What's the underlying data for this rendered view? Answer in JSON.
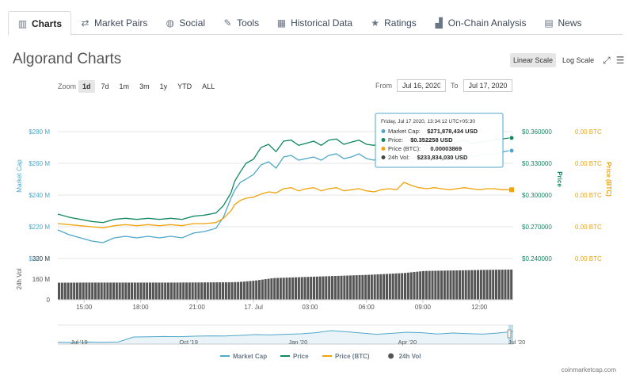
{
  "tabs": [
    {
      "label": "Charts",
      "icon": "chart-icon",
      "glyph": "▥",
      "active": true
    },
    {
      "label": "Market Pairs",
      "icon": "swap-icon",
      "glyph": "⇄",
      "active": false
    },
    {
      "label": "Social",
      "icon": "globe-icon",
      "glyph": "◍",
      "active": false
    },
    {
      "label": "Tools",
      "icon": "wrench-icon",
      "glyph": "✎",
      "active": false
    },
    {
      "label": "Historical Data",
      "icon": "calendar-icon",
      "glyph": "▦",
      "active": false
    },
    {
      "label": "Ratings",
      "icon": "star-icon",
      "glyph": "★",
      "active": false
    },
    {
      "label": "On-Chain Analysis",
      "icon": "bar-chart-icon",
      "glyph": "▟",
      "active": false
    },
    {
      "label": "News",
      "icon": "newspaper-icon",
      "glyph": "▤",
      "active": false
    }
  ],
  "title": "Algorand Charts",
  "scale": {
    "linear": "Linear Scale",
    "log": "Log Scale",
    "active": "linear"
  },
  "zoom": {
    "label": "Zoom",
    "options": [
      "1d",
      "7d",
      "1m",
      "3m",
      "1y",
      "YTD",
      "ALL"
    ],
    "active": "1d"
  },
  "range": {
    "from_label": "From",
    "from": "Jul 16, 2020",
    "to_label": "To",
    "to": "Jul 17, 2020"
  },
  "tooltip": {
    "header": "Friday, Jul 17 2020, 13:34:12 UTC+05:30",
    "rows": [
      {
        "label": "Market Cap:",
        "value": "$271,878,434 USD",
        "color": "#4fa7c9"
      },
      {
        "label": "Price:",
        "value": "$0.352258 USD",
        "color": "#11885f"
      },
      {
        "label": "Price (BTC):",
        "value": "0.00003869",
        "color": "#f0a30a"
      },
      {
        "label": "24h Vol:",
        "value": "$233,834,030 USD",
        "color": "#444444"
      }
    ]
  },
  "legend": [
    {
      "name": "Market Cap",
      "color": "#4fa7c9",
      "marker": "line"
    },
    {
      "name": "Price",
      "color": "#11885f",
      "marker": "line"
    },
    {
      "name": "Price (BTC)",
      "color": "#f0a30a",
      "marker": "line"
    },
    {
      "name": "24h Vol",
      "color": "#555555",
      "marker": "dot"
    }
  ],
  "watermark": "coinmarketcap.com",
  "chart_data": {
    "type": "line",
    "x_ticks": [
      "15:00",
      "18:00",
      "21:00",
      "17. Jul",
      "03:00",
      "06:00",
      "09:00",
      "12:00"
    ],
    "x_tick_hours": [
      15,
      18,
      21,
      24,
      27,
      30,
      33,
      36
    ],
    "x_range_hours": [
      13.6,
      37.8
    ],
    "axes": {
      "market_cap": {
        "label": "Market Cap",
        "ticks": [
          "$280 M",
          "$260 M",
          "$240 M",
          "$220 M",
          "$200 M"
        ],
        "tick_values": [
          280,
          260,
          240,
          220,
          200
        ],
        "ylim": [
          200,
          280
        ],
        "unit": "M USD",
        "color": "#4fa7c9"
      },
      "price": {
        "label": "Price",
        "ticks": [
          "$0.360000",
          "$0.330000",
          "$0.300000",
          "$0.270000",
          "$0.240000"
        ],
        "tick_values": [
          0.36,
          0.33,
          0.3,
          0.27,
          0.24
        ],
        "ylim": [
          0.24,
          0.36
        ],
        "color": "#11885f"
      },
      "price_btc": {
        "label": "Price (BTC)",
        "ticks": [
          "0.00 BTC",
          "0.00 BTC",
          "0.00 BTC",
          "0.00 BTC",
          "0.00 BTC"
        ],
        "color": "#f0a30a"
      },
      "volume": {
        "label": "24h Vol",
        "ticks": [
          "320 M",
          "160 M",
          "0"
        ],
        "tick_values": [
          320,
          160,
          0
        ],
        "ylim": [
          0,
          320
        ],
        "unit": "M USD",
        "color": "#555555"
      }
    },
    "series": [
      {
        "name": "Market Cap",
        "axis": "market_cap",
        "color": "#4fa7c9",
        "x": [
          13.6,
          14.2,
          14.8,
          15.4,
          16.0,
          16.6,
          17.2,
          17.8,
          18.4,
          19.0,
          19.6,
          20.2,
          20.8,
          21.4,
          22.0,
          22.4,
          22.8,
          23.0,
          23.3,
          23.6,
          24.0,
          24.4,
          24.8,
          25.2,
          25.6,
          26.0,
          26.4,
          26.8,
          27.2,
          27.6,
          28.0,
          28.4,
          28.8,
          29.2,
          29.6,
          30.0,
          30.4,
          30.8,
          31.2,
          31.6,
          32.0,
          32.4,
          32.8,
          33.2,
          33.6,
          34.0,
          34.4,
          34.8,
          35.2,
          35.6,
          36.0,
          36.4,
          36.8,
          37.2,
          37.6
        ],
        "values": [
          218,
          215,
          213,
          211,
          210,
          213,
          214,
          213,
          214,
          213,
          214,
          213,
          216,
          217,
          219,
          226,
          238,
          243,
          248,
          250,
          253,
          259,
          261,
          257,
          264,
          265,
          262,
          263,
          264,
          262,
          265,
          266,
          263,
          264,
          266,
          263,
          262,
          264,
          265,
          263,
          262,
          263,
          265,
          263,
          265,
          264,
          263,
          265,
          266,
          264,
          265,
          266,
          266,
          267,
          268
        ]
      },
      {
        "name": "Price",
        "axis": "price",
        "color": "#11885f",
        "x": [
          13.6,
          14.2,
          14.8,
          15.4,
          16.0,
          16.6,
          17.2,
          17.8,
          18.4,
          19.0,
          19.6,
          20.2,
          20.8,
          21.4,
          22.0,
          22.4,
          22.8,
          23.0,
          23.3,
          23.6,
          24.0,
          24.4,
          24.8,
          25.2,
          25.6,
          26.0,
          26.4,
          26.8,
          27.2,
          27.6,
          28.0,
          28.4,
          28.8,
          29.2,
          29.6,
          30.0,
          30.4,
          30.8,
          31.2,
          31.6,
          32.0,
          32.4,
          32.8,
          33.2,
          33.6,
          34.0,
          34.4,
          34.8,
          35.2,
          35.6,
          36.0,
          36.4,
          36.8,
          37.2,
          37.6
        ],
        "values": [
          0.282,
          0.279,
          0.277,
          0.275,
          0.274,
          0.277,
          0.278,
          0.277,
          0.278,
          0.277,
          0.278,
          0.277,
          0.28,
          0.281,
          0.283,
          0.29,
          0.302,
          0.313,
          0.322,
          0.33,
          0.334,
          0.345,
          0.348,
          0.341,
          0.351,
          0.352,
          0.347,
          0.349,
          0.351,
          0.347,
          0.352,
          0.353,
          0.348,
          0.35,
          0.352,
          0.348,
          0.347,
          0.35,
          0.351,
          0.348,
          0.372,
          0.351,
          0.349,
          0.347,
          0.35,
          0.349,
          0.347,
          0.35,
          0.352,
          0.349,
          0.35,
          0.351,
          0.352,
          0.353,
          0.354
        ]
      },
      {
        "name": "Price (BTC)",
        "axis": "price",
        "color": "#f0a30a",
        "x": [
          13.6,
          14.2,
          14.8,
          15.4,
          16.0,
          16.6,
          17.2,
          17.8,
          18.4,
          19.0,
          19.6,
          20.2,
          20.8,
          21.4,
          22.0,
          22.4,
          22.8,
          23.0,
          23.3,
          23.6,
          24.0,
          24.4,
          24.8,
          25.2,
          25.6,
          26.0,
          26.4,
          26.8,
          27.2,
          27.6,
          28.0,
          28.4,
          28.8,
          29.2,
          29.6,
          30.0,
          30.4,
          30.8,
          31.2,
          31.6,
          32.0,
          32.4,
          32.8,
          33.2,
          33.6,
          34.0,
          34.4,
          34.8,
          35.2,
          35.6,
          36.0,
          36.4,
          36.8,
          37.2,
          37.6
        ],
        "values": [
          0.273,
          0.272,
          0.271,
          0.27,
          0.269,
          0.271,
          0.272,
          0.271,
          0.272,
          0.271,
          0.272,
          0.271,
          0.273,
          0.273,
          0.274,
          0.278,
          0.285,
          0.291,
          0.295,
          0.297,
          0.298,
          0.301,
          0.303,
          0.302,
          0.306,
          0.307,
          0.304,
          0.306,
          0.307,
          0.304,
          0.306,
          0.307,
          0.304,
          0.305,
          0.306,
          0.304,
          0.303,
          0.305,
          0.306,
          0.305,
          0.312,
          0.309,
          0.307,
          0.306,
          0.307,
          0.306,
          0.305,
          0.306,
          0.307,
          0.306,
          0.305,
          0.306,
          0.306,
          0.305,
          0.305
        ]
      },
      {
        "name": "24h Vol",
        "axis": "volume",
        "color": "#555555",
        "type": "bar",
        "x": [
          13.6,
          15.0,
          16.5,
          18.0,
          19.5,
          21.0,
          22.0,
          22.6,
          23.2,
          24.0,
          25.0,
          26.0,
          27.0,
          28.0,
          29.0,
          30.0,
          31.0,
          32.0,
          33.0,
          34.0,
          35.0,
          36.0,
          37.0,
          37.6
        ],
        "values": [
          132,
          133,
          133,
          133,
          133,
          134,
          135,
          135,
          138,
          148,
          168,
          173,
          178,
          183,
          188,
          193,
          200,
          208,
          223,
          226,
          228,
          231,
          233,
          234
        ]
      }
    ],
    "navigator": {
      "x_ticks": [
        "Jul '19",
        "Oct '19",
        "Jan '20",
        "Apr '20",
        "Jul '20"
      ],
      "values": [
        0.12,
        0.11,
        0.13,
        0.12,
        0.14,
        0.45,
        0.46,
        0.48,
        0.47,
        0.5,
        0.52,
        0.51,
        0.55,
        0.6,
        0.58,
        0.62,
        0.65,
        0.72,
        0.85,
        0.78,
        0.7,
        0.62,
        0.68,
        0.75,
        0.72,
        0.64,
        0.7,
        0.66,
        0.63,
        0.7,
        0.8
      ]
    }
  }
}
